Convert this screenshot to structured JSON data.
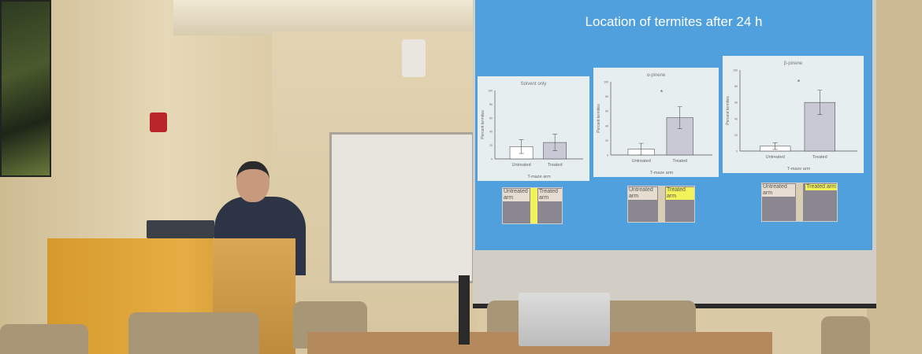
{
  "slide": {
    "title": "Location of termites after 24 h",
    "colors": {
      "background": "#4fa0dd",
      "panel": "#e6eef0",
      "treated_bar": "#c9c9d6",
      "untreated_bar": "#ffffff",
      "highlight": "#f2f25a"
    },
    "thumbnails": [
      {
        "untreated_label": "Untreated arm",
        "treated_label": "Treated arm",
        "highlight": "none"
      },
      {
        "untreated_label": "Untreated arm",
        "treated_label": "Treated arm",
        "highlight": "treated"
      },
      {
        "untreated_label": "Untreated arm",
        "treated_label": "Treated arm",
        "highlight": "treated"
      }
    ]
  },
  "chart_data": [
    {
      "type": "bar",
      "title": "Solvent only",
      "xlabel": "T-maze arm",
      "ylabel": "Percent termites",
      "ylim": [
        0,
        100
      ],
      "yticks": [
        0,
        20,
        40,
        60,
        80,
        100
      ],
      "categories": [
        "Untreated",
        "Treated"
      ],
      "values": [
        18,
        24
      ],
      "errors": [
        10,
        12
      ],
      "significance": ""
    },
    {
      "type": "bar",
      "title": "α-pinene",
      "xlabel": "T-maze arm",
      "ylabel": "Percent termites",
      "ylim": [
        0,
        100
      ],
      "yticks": [
        0,
        20,
        40,
        60,
        80,
        100
      ],
      "categories": [
        "Untreated",
        "Treated"
      ],
      "values": [
        8,
        51
      ],
      "errors": [
        8,
        15
      ],
      "significance": "*"
    },
    {
      "type": "bar",
      "title": "β-pinene",
      "xlabel": "T-maze arm",
      "ylabel": "Percent termites",
      "ylim": [
        0,
        100
      ],
      "yticks": [
        0,
        20,
        40,
        60,
        80,
        100
      ],
      "categories": [
        "Untreated",
        "Treated"
      ],
      "values": [
        6,
        60
      ],
      "errors": [
        4,
        15
      ],
      "significance": "*"
    }
  ]
}
